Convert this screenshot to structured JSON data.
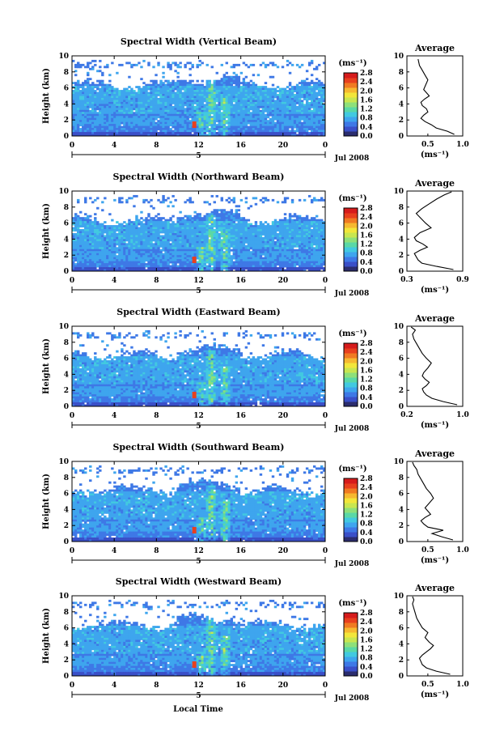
{
  "figure": {
    "xlabel": "Local Time",
    "month_label": "Jul 2008",
    "day_marker": "5",
    "avg_title": "Average",
    "ylabel": "Height (km)",
    "unit_label": "(ms⁻¹)",
    "avg_xlabel": "(ms⁻¹)"
  },
  "colors": {
    "colormap": [
      "#2b2d6e",
      "#3a4fc8",
      "#3e78e6",
      "#3ea5ee",
      "#42c9e0",
      "#5ad8a6",
      "#8ee07a",
      "#c8e650",
      "#f2e63a",
      "#f6b830",
      "#f07a22",
      "#e8401e",
      "#d61c1c"
    ]
  },
  "chart_data": [
    {
      "type": "heatmap",
      "title": "Spectral Width (Vertical Beam)",
      "xlim": [
        0,
        24
      ],
      "ylim": [
        0,
        10
      ],
      "x_ticks": [
        "0",
        "4",
        "8",
        "12",
        "16",
        "20",
        "0"
      ],
      "y_ticks": [
        "0",
        "2",
        "4",
        "6",
        "8",
        "10"
      ],
      "colorbar": {
        "min": 0.0,
        "max": 2.8,
        "ticks": [
          "0.0",
          "0.4",
          "0.8",
          "1.2",
          "1.6",
          "2.0",
          "2.4",
          "2.8"
        ]
      },
      "average": {
        "type": "line",
        "title": "Average",
        "xlim": [
          0.2,
          1.0
        ],
        "ylim": [
          0,
          10
        ],
        "x_ticks": [
          "0.5",
          "1.0"
        ],
        "y_ticks": [
          "0",
          "2",
          "4",
          "6",
          "8",
          "10"
        ],
        "x": [
          0.88,
          0.78,
          0.62,
          0.55,
          0.46,
          0.4,
          0.44,
          0.5,
          0.48,
          0.42,
          0.4,
          0.45,
          0.52,
          0.48,
          0.44,
          0.47,
          0.5,
          0.46,
          0.42,
          0.38,
          0.36
        ],
        "y": [
          0.2,
          0.6,
          1.0,
          1.4,
          1.8,
          2.2,
          2.6,
          3.0,
          3.4,
          3.8,
          4.2,
          4.6,
          5.0,
          5.4,
          5.8,
          6.4,
          7.0,
          7.6,
          8.2,
          8.8,
          9.6
        ]
      }
    },
    {
      "type": "heatmap",
      "title": "Spectral Width (Northward Beam)",
      "xlim": [
        0,
        24
      ],
      "ylim": [
        0,
        10
      ],
      "x_ticks": [
        "0",
        "4",
        "8",
        "12",
        "16",
        "20",
        "0"
      ],
      "y_ticks": [
        "0",
        "2",
        "4",
        "6",
        "8",
        "10"
      ],
      "colorbar": {
        "min": 0.0,
        "max": 2.8,
        "ticks": [
          "0.0",
          "0.4",
          "0.8",
          "1.2",
          "1.6",
          "2.0",
          "2.4",
          "2.8"
        ]
      },
      "average": {
        "type": "line",
        "title": "Average",
        "xlim": [
          0.3,
          0.9
        ],
        "ylim": [
          0,
          10
        ],
        "x_ticks": [
          "0.3",
          "0.9"
        ],
        "y_ticks": [
          "0",
          "2",
          "4",
          "6",
          "8",
          "10"
        ],
        "x": [
          0.8,
          0.62,
          0.46,
          0.42,
          0.4,
          0.38,
          0.44,
          0.52,
          0.47,
          0.4,
          0.38,
          0.44,
          0.56,
          0.5,
          0.45,
          0.4,
          0.46,
          0.54,
          0.62,
          0.7,
          0.78
        ],
        "y": [
          0.2,
          0.6,
          1.0,
          1.4,
          1.8,
          2.2,
          2.6,
          3.0,
          3.4,
          3.8,
          4.2,
          4.8,
          5.4,
          6.0,
          6.6,
          7.2,
          7.8,
          8.4,
          9.0,
          9.5,
          9.9
        ]
      }
    },
    {
      "type": "heatmap",
      "title": "Spectral Width (Eastward Beam)",
      "xlim": [
        0,
        24
      ],
      "ylim": [
        0,
        10
      ],
      "x_ticks": [
        "0",
        "4",
        "8",
        "12",
        "16",
        "20",
        "0"
      ],
      "y_ticks": [
        "0",
        "2",
        "4",
        "6",
        "8",
        "10"
      ],
      "colorbar": {
        "min": 0.0,
        "max": 2.8,
        "ticks": [
          "0.0",
          "0.4",
          "0.8",
          "1.2",
          "1.6",
          "2.0",
          "2.4",
          "2.8"
        ]
      },
      "average": {
        "type": "line",
        "title": "Average",
        "xlim": [
          0.2,
          1.0
        ],
        "ylim": [
          0,
          10
        ],
        "x_ticks": [
          "0.2",
          "1.0"
        ],
        "y_ticks": [
          "0",
          "2",
          "4",
          "6",
          "8",
          "10"
        ],
        "x": [
          0.92,
          0.72,
          0.56,
          0.48,
          0.44,
          0.42,
          0.48,
          0.52,
          0.46,
          0.42,
          0.44,
          0.5,
          0.55,
          0.48,
          0.42,
          0.38,
          0.34,
          0.3,
          0.28,
          0.32,
          0.26
        ],
        "y": [
          0.2,
          0.6,
          1.0,
          1.4,
          1.8,
          2.2,
          2.6,
          3.0,
          3.4,
          3.8,
          4.2,
          4.8,
          5.4,
          6.0,
          6.6,
          7.2,
          7.8,
          8.4,
          9.0,
          9.5,
          9.9
        ]
      }
    },
    {
      "type": "heatmap",
      "title": "Spectral Width (Southward Beam)",
      "xlim": [
        0,
        24
      ],
      "ylim": [
        0,
        10
      ],
      "x_ticks": [
        "0",
        "4",
        "8",
        "12",
        "16",
        "20",
        "0"
      ],
      "y_ticks": [
        "0",
        "2",
        "4",
        "6",
        "8",
        "10"
      ],
      "colorbar": {
        "min": 0.0,
        "max": 2.8,
        "ticks": [
          "0.0",
          "0.4",
          "0.8",
          "1.2",
          "1.6",
          "2.0",
          "2.4",
          "2.8"
        ]
      },
      "average": {
        "type": "line",
        "title": "Average",
        "xlim": [
          0.2,
          1.0
        ],
        "ylim": [
          0,
          10
        ],
        "x_ticks": [
          "0.5",
          "1.0"
        ],
        "y_ticks": [
          "0",
          "2",
          "4",
          "6",
          "8",
          "10"
        ],
        "x": [
          0.86,
          0.7,
          0.56,
          0.72,
          0.5,
          0.44,
          0.4,
          0.46,
          0.54,
          0.5,
          0.46,
          0.52,
          0.58,
          0.54,
          0.48,
          0.44,
          0.4,
          0.36,
          0.34,
          0.3,
          0.28
        ],
        "y": [
          0.2,
          0.6,
          1.0,
          1.4,
          1.8,
          2.2,
          2.6,
          3.0,
          3.4,
          3.8,
          4.2,
          4.8,
          5.4,
          6.0,
          6.6,
          7.2,
          7.8,
          8.4,
          9.0,
          9.5,
          9.9
        ]
      }
    },
    {
      "type": "heatmap",
      "title": "Spectral Width (Westward Beam)",
      "xlim": [
        0,
        24
      ],
      "ylim": [
        0,
        10
      ],
      "x_ticks": [
        "0",
        "4",
        "8",
        "12",
        "16",
        "20",
        "0"
      ],
      "y_ticks": [
        "0",
        "2",
        "4",
        "6",
        "8",
        "10"
      ],
      "colorbar": {
        "min": 0.0,
        "max": 2.8,
        "ticks": [
          "0.0",
          "0.4",
          "0.8",
          "1.2",
          "1.6",
          "2.0",
          "2.4",
          "2.8"
        ]
      },
      "average": {
        "type": "line",
        "title": "Average",
        "xlim": [
          0.2,
          1.0
        ],
        "ylim": [
          0,
          10
        ],
        "x_ticks": [
          "0.5",
          "1.0"
        ],
        "y_ticks": [
          "0",
          "2",
          "4",
          "6",
          "8",
          "10"
        ],
        "x": [
          0.82,
          0.62,
          0.48,
          0.42,
          0.4,
          0.38,
          0.42,
          0.48,
          0.54,
          0.58,
          0.52,
          0.46,
          0.5,
          0.42,
          0.38,
          0.34,
          0.32,
          0.3,
          0.28,
          0.3,
          0.28
        ],
        "y": [
          0.2,
          0.6,
          1.0,
          1.4,
          1.8,
          2.2,
          2.6,
          3.0,
          3.4,
          3.8,
          4.2,
          4.8,
          5.4,
          6.0,
          6.6,
          7.2,
          7.8,
          8.4,
          9.0,
          9.5,
          9.9
        ]
      }
    }
  ]
}
